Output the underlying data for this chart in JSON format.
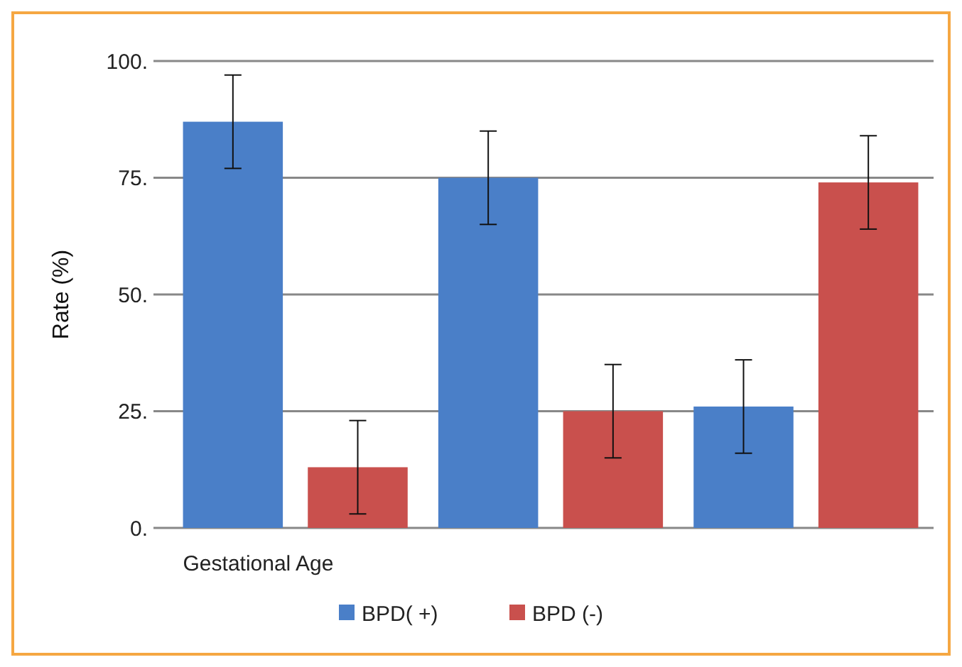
{
  "chart_data": {
    "type": "bar",
    "ylabel": "Rate (%)",
    "categories": [
      "Gestational Age",
      null,
      null
    ],
    "series": [
      {
        "name": "BPD( +)",
        "color": "#4a7fc8",
        "values": [
          87,
          75,
          26
        ],
        "errors": [
          10,
          10,
          10
        ]
      },
      {
        "name": "BPD (-)",
        "color": "#c9504d",
        "values": [
          13,
          25,
          74
        ],
        "errors": [
          10,
          10,
          10
        ]
      }
    ],
    "ylim": [
      0,
      100
    ],
    "yticks": [
      {
        "value": 0,
        "label": "0."
      },
      {
        "value": 25,
        "label": "25."
      },
      {
        "value": 50,
        "label": "50."
      },
      {
        "value": 75,
        "label": "75."
      },
      {
        "value": 100,
        "label": "100."
      }
    ],
    "grid": "y",
    "legend": "bottom"
  }
}
